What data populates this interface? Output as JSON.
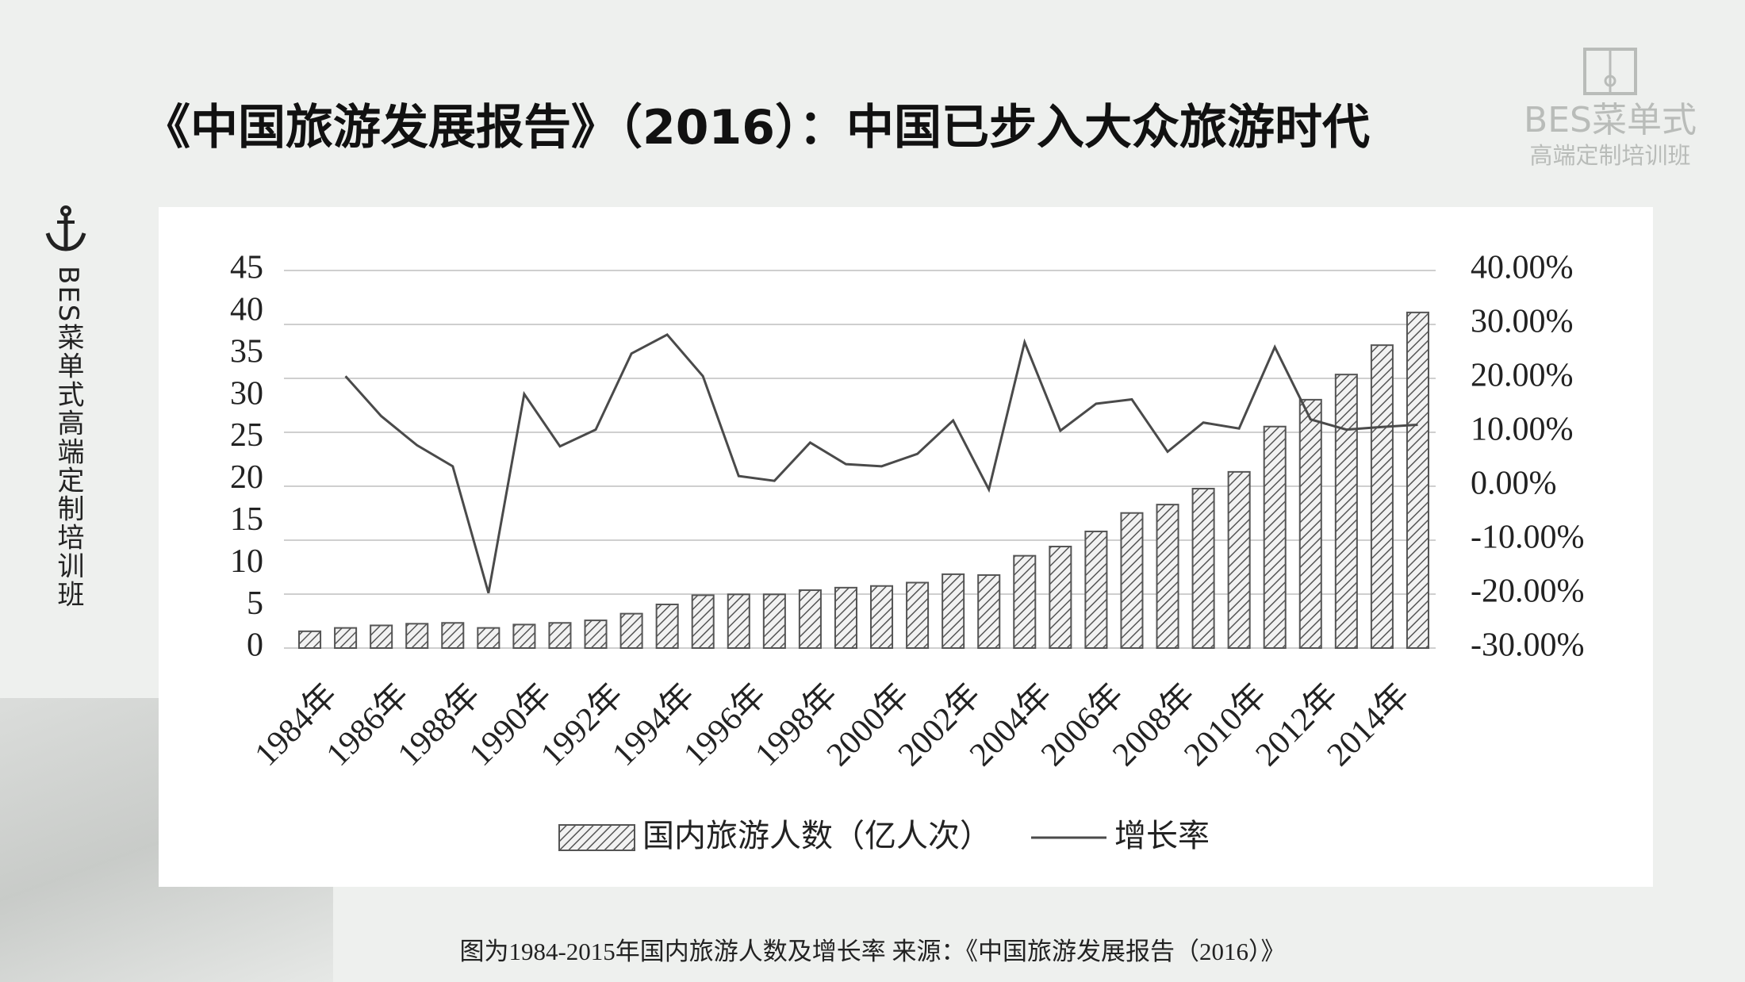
{
  "slide": {
    "title": "《中国旅游发展报告》（2016）：中国已步入大众旅游时代",
    "logo_name": "BES菜单式",
    "logo_sub": "高端定制培训班",
    "side_text": "BES菜单式高端定制培训班",
    "caption": "图为1984-2015年国内旅游人数及增长率 来源：《中国旅游发展报告（2016）》"
  },
  "chart_data": {
    "type": "bar",
    "categories": [
      "1984年",
      null,
      "1986年",
      null,
      "1988年",
      null,
      "1990年",
      null,
      "1992年",
      null,
      "1994年",
      null,
      "1996年",
      null,
      "1998年",
      null,
      "2000年",
      null,
      "2002年",
      null,
      "2004年",
      null,
      "2006年",
      null,
      "2008年",
      null,
      "2010年",
      null,
      "2012年",
      null,
      "2014年",
      null
    ],
    "series": [
      {
        "name": "国内旅游人数（亿人次）",
        "type": "bar",
        "color": "#555555",
        "values": [
          2.0,
          2.4,
          2.7,
          2.9,
          3.0,
          2.4,
          2.8,
          3.0,
          3.3,
          4.1,
          5.2,
          6.3,
          6.4,
          6.4,
          6.9,
          7.2,
          7.4,
          7.8,
          8.8,
          8.7,
          11.0,
          12.1,
          13.9,
          16.1,
          17.1,
          19.0,
          21.0,
          26.4,
          29.6,
          32.6,
          36.1,
          40.0
        ]
      },
      {
        "name": "增长率",
        "type": "line",
        "axis": "y2",
        "color": "#4a4a4a",
        "values": [
          null,
          20.4,
          13.0,
          7.6,
          3.7,
          -19.8,
          17.1,
          7.4,
          10.5,
          24.6,
          28.1,
          20.4,
          1.9,
          1.0,
          8.1,
          4.1,
          3.7,
          6.0,
          12.2,
          -0.6,
          26.7,
          10.3,
          15.3,
          16.1,
          6.4,
          11.8,
          10.7,
          25.8,
          12.4,
          10.5,
          11.0,
          11.4
        ]
      }
    ],
    "ylim": [
      0,
      45
    ],
    "yticks": [
      0,
      5,
      10,
      15,
      20,
      25,
      30,
      35,
      40,
      45
    ],
    "y2lim": [
      -30,
      40
    ],
    "y2ticks": [
      {
        "value": -30,
        "label": "-30.00%"
      },
      {
        "value": -20,
        "label": "-20.00%"
      },
      {
        "value": -10,
        "label": "-10.00%"
      },
      {
        "value": 0,
        "label": "0.00%"
      },
      {
        "value": 10,
        "label": "10.00%"
      },
      {
        "value": 20,
        "label": "20.00%"
      },
      {
        "value": 30,
        "label": "30.00%"
      },
      {
        "value": 40,
        "label": "40.00%"
      }
    ],
    "grid": true,
    "legend": "bottom"
  }
}
